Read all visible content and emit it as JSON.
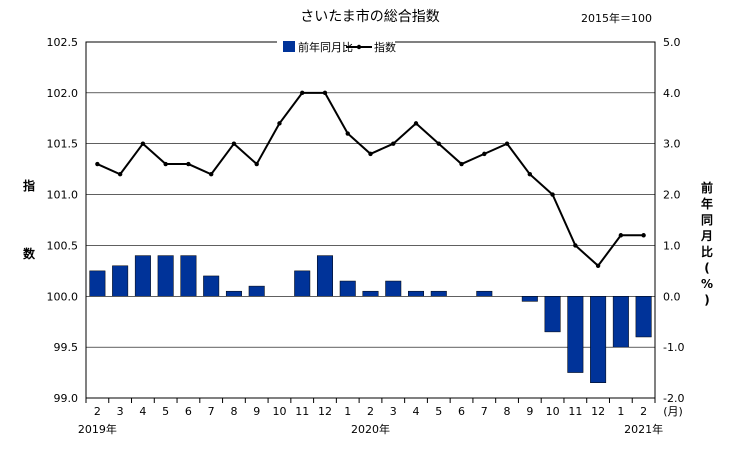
{
  "chart_data": {
    "type": "bar+line",
    "title": "さいたま市の総合指数",
    "subtitle": "2015年＝100",
    "categories": [
      "2",
      "3",
      "4",
      "5",
      "6",
      "7",
      "8",
      "9",
      "10",
      "11",
      "12",
      "1",
      "2",
      "3",
      "4",
      "5",
      "6",
      "7",
      "8",
      "9",
      "10",
      "11",
      "12",
      "1",
      "2"
    ],
    "x_unit": "(月)",
    "year_labels": [
      {
        "label": "2019年",
        "index": 0
      },
      {
        "label": "2020年",
        "index": 12
      },
      {
        "label": "2021年",
        "index": 24
      }
    ],
    "y_left": {
      "label": "指数",
      "range": [
        99.0,
        102.5
      ],
      "step": 0.5,
      "ticks": [
        "99.0",
        "99.5",
        "100.0",
        "100.5",
        "101.0",
        "101.5",
        "102.0",
        "102.5"
      ]
    },
    "y_right": {
      "label": "前年同月比(%)",
      "range": [
        -2.0,
        5.0
      ],
      "step": 1.0,
      "ticks": [
        "-2.0",
        "-1.0",
        "0.0",
        "1.0",
        "2.0",
        "3.0",
        "4.0",
        "5.0"
      ]
    },
    "legend": {
      "placement": "top-center",
      "bar_label": "前年同月比",
      "line_label": "指数"
    },
    "series": [
      {
        "name": "前年同月比",
        "type": "bar",
        "axis": "right",
        "color": "#003399",
        "values": [
          0.5,
          0.6,
          0.8,
          0.8,
          0.8,
          0.4,
          0.1,
          0.2,
          0.0,
          0.5,
          0.8,
          0.3,
          0.1,
          0.3,
          0.1,
          0.1,
          0.0,
          0.1,
          0.0,
          -0.1,
          -0.7,
          -1.5,
          -1.7,
          -1.0,
          -0.8
        ]
      },
      {
        "name": "指数",
        "type": "line",
        "axis": "left",
        "color": "#000000",
        "values": [
          101.3,
          101.2,
          101.5,
          101.3,
          101.3,
          101.2,
          101.5,
          101.3,
          101.7,
          102.0,
          102.0,
          101.6,
          101.4,
          101.5,
          101.7,
          101.5,
          101.3,
          101.4,
          101.5,
          101.2,
          101.0,
          100.5,
          100.3,
          100.6,
          100.6
        ]
      }
    ],
    "grid": "horizontal"
  }
}
